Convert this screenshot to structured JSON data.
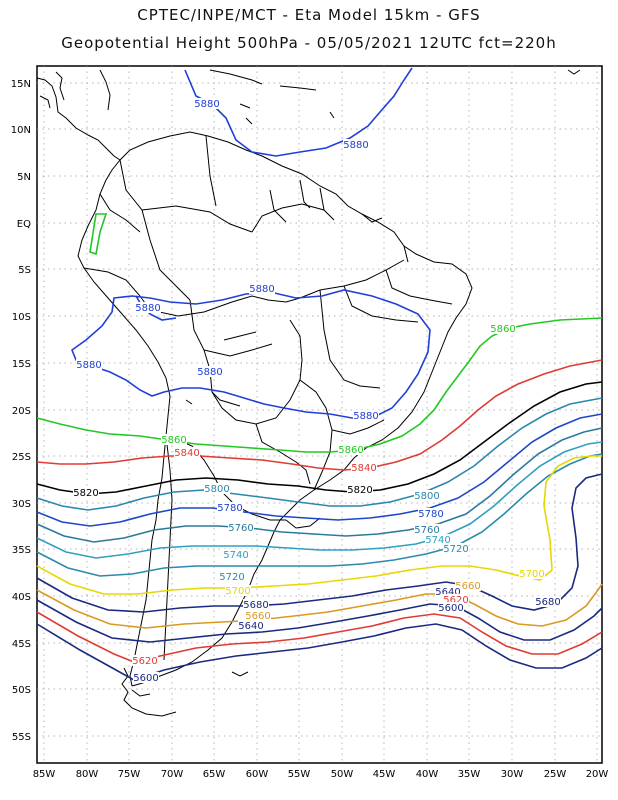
{
  "header": {
    "line1": "CPTEC/INPE/MCT -  Eta Model 15km - GFS",
    "line2": "Geopotential Height 500hPa - 05/05/2021 12UTC fct=220h"
  },
  "axes": {
    "lat_labels": [
      "15N",
      "10N",
      "5N",
      "EQ",
      "5S",
      "10S",
      "15S",
      "20S",
      "25S",
      "30S",
      "35S",
      "40S",
      "45S",
      "50S",
      "55S"
    ],
    "lon_labels": [
      "85W",
      "80W",
      "75W",
      "70W",
      "65W",
      "60W",
      "55W",
      "50W",
      "45W",
      "40W",
      "35W",
      "30W",
      "25W",
      "20W"
    ]
  },
  "contour_labels": [
    {
      "text": "5880",
      "color": "#1f3fd8"
    },
    {
      "text": "5880",
      "color": "#1f3fd8"
    },
    {
      "text": "5880",
      "color": "#1f3fd8"
    },
    {
      "text": "5880",
      "color": "#1f3fd8"
    },
    {
      "text": "5880",
      "color": "#1f3fd8"
    },
    {
      "text": "5880",
      "color": "#1f3fd8"
    },
    {
      "text": "5880",
      "color": "#1f3fd8"
    },
    {
      "text": "5860",
      "color": "#22c822"
    },
    {
      "text": "5860",
      "color": "#22c822"
    },
    {
      "text": "5860",
      "color": "#22c822"
    },
    {
      "text": "5840",
      "color": "#e03a32"
    },
    {
      "text": "5840",
      "color": "#e03a32"
    },
    {
      "text": "5820",
      "color": "#000000"
    },
    {
      "text": "5820",
      "color": "#000000"
    },
    {
      "text": "5800",
      "color": "#2d86ad"
    },
    {
      "text": "5800",
      "color": "#2d86ad"
    },
    {
      "text": "5780",
      "color": "#1e46c8"
    },
    {
      "text": "5780",
      "color": "#1e46c8"
    },
    {
      "text": "5760",
      "color": "#2a7a9c"
    },
    {
      "text": "5760",
      "color": "#2a7a9c"
    },
    {
      "text": "5740",
      "color": "#2fa0c0"
    },
    {
      "text": "5740",
      "color": "#2fa0c0"
    },
    {
      "text": "5720",
      "color": "#2a8aa8"
    },
    {
      "text": "5720",
      "color": "#2a8aa8"
    },
    {
      "text": "5700",
      "color": "#e6d800"
    },
    {
      "text": "5700",
      "color": "#e6d800"
    },
    {
      "text": "5680",
      "color": "#1a2a80"
    },
    {
      "text": "5680",
      "color": "#1a2a80"
    },
    {
      "text": "5660",
      "color": "#d99a20"
    },
    {
      "text": "5660",
      "color": "#d99a20"
    },
    {
      "text": "5640",
      "color": "#1a2a80"
    },
    {
      "text": "5640",
      "color": "#1a2a80"
    },
    {
      "text": "5620",
      "color": "#e03a32"
    },
    {
      "text": "5620",
      "color": "#e03a32"
    },
    {
      "text": "5600",
      "color": "#1a2a80"
    },
    {
      "text": "5600",
      "color": "#1a2a80"
    }
  ],
  "colors": {
    "c5880": "#1f3fd8",
    "c5860": "#22c822",
    "c5840": "#e03a32",
    "c5820": "#000000",
    "c5800": "#2d86ad",
    "c5780": "#1e46c8",
    "c5760": "#2a7a9c",
    "c5740": "#2fa0c0",
    "c5720": "#2a8aa8",
    "c5700": "#e6d800",
    "c5680": "#1a2a80",
    "c5660": "#d99a20",
    "c5640": "#1a2a80",
    "c5620": "#e03a32",
    "c5600": "#1a2a80",
    "coast": "#000000",
    "grid": "#9a9a9a"
  }
}
